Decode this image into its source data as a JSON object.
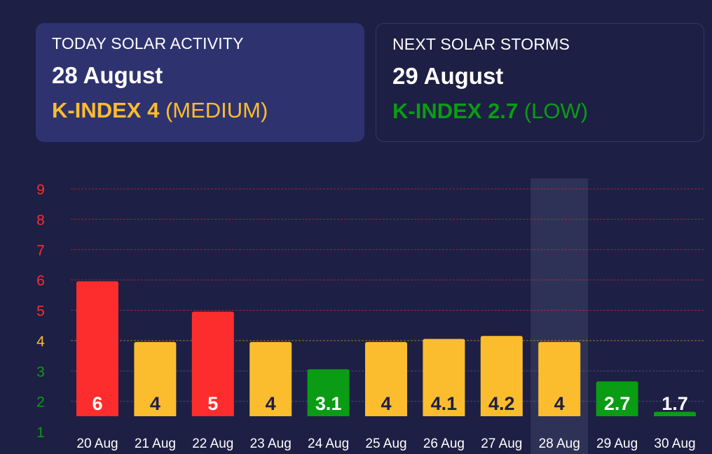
{
  "today_card": {
    "heading": "TODAY SOLAR ACTIVITY",
    "date": "28 August",
    "k_label": "K-INDEX 4",
    "level": "(MEDIUM)",
    "color": "#fbbd2d"
  },
  "next_card": {
    "heading": "NEXT SOLAR STORMS",
    "date": "29 August",
    "k_label": "K-INDEX 2.7",
    "level": "(LOW)",
    "color": "#0a9c14"
  },
  "colors": {
    "high": "#fe2d2d",
    "medium": "#fbbd2d",
    "low": "#0a9c14",
    "background": "#1d1f44",
    "highlight": "#2f3257"
  },
  "chart_data": {
    "type": "bar",
    "categories": [
      "20 Aug",
      "21 Aug",
      "22 Aug",
      "23 Aug",
      "24 Aug",
      "25 Aug",
      "26 Aug",
      "27 Aug",
      "28 Aug",
      "29 Aug",
      "30 Aug"
    ],
    "values": [
      6,
      4,
      5,
      4,
      3.1,
      4,
      4.1,
      4.2,
      4,
      2.7,
      1.7
    ],
    "labels": [
      "6",
      "4",
      "5",
      "4",
      "3.1",
      "4",
      "4.1",
      "4.2",
      "4",
      "2.7",
      "1.7"
    ],
    "bar_levels": [
      "high",
      "medium",
      "high",
      "medium",
      "low",
      "medium",
      "medium",
      "medium",
      "medium",
      "low",
      "low"
    ],
    "highlighted_category": "28 Aug",
    "y_ticks": [
      1,
      2,
      3,
      4,
      5,
      6,
      7,
      8,
      9
    ],
    "y_tick_levels": [
      "low",
      "low",
      "low",
      "medium",
      "high",
      "high",
      "high",
      "high",
      "high"
    ],
    "ylim": [
      1,
      9
    ],
    "grid": true,
    "legend": "none"
  }
}
